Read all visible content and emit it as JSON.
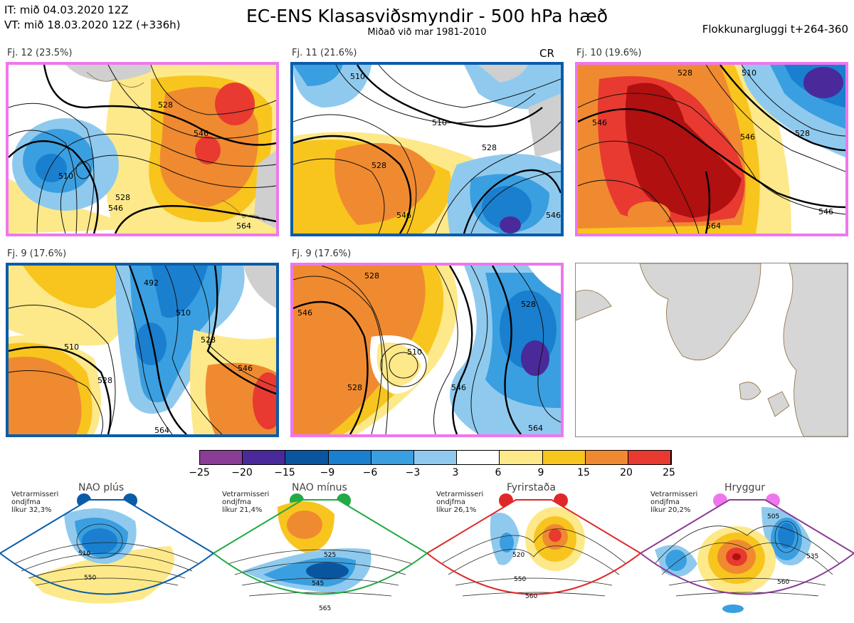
{
  "header": {
    "init_time": "IT: mið 04.03.2020 12Z",
    "valid_time": "VT: mið 18.03.2020 12Z  (+336h)",
    "title": "EC-ENS Klasasviðsmyndir - 500 hPa hæð",
    "subtitle": "Miðað við mar 1981-2010",
    "window": "Flokkunargluggi t+264-360"
  },
  "panels": [
    {
      "label": "Fj. 12 (23.5%)",
      "frame_color": "#ee77ee",
      "extra": "",
      "contours": [
        "510",
        "528",
        "546",
        "546",
        "528",
        "564"
      ]
    },
    {
      "label": "Fj. 11 (21.6%)",
      "frame_color": "#0a5ca8",
      "extra": "CR",
      "contours": [
        "528",
        "510",
        "528",
        "510",
        "546",
        "546"
      ]
    },
    {
      "label": "Fj. 10 (19.6%)",
      "frame_color": "#ee77ee",
      "extra": "",
      "contours": [
        "546",
        "528",
        "510",
        "546",
        "528",
        "564",
        "546"
      ]
    },
    {
      "label": "Fj. 9 (17.6%)",
      "frame_color": "#0a5ca8",
      "extra": "",
      "contours": [
        "492",
        "510",
        "528",
        "510",
        "528",
        "546",
        "564"
      ]
    },
    {
      "label": "Fj. 9 (17.6%)",
      "frame_color": "#ee77ee",
      "extra": "",
      "contours": [
        "528",
        "546",
        "510",
        "528",
        "546",
        "564",
        "528"
      ]
    }
  ],
  "colorbar": {
    "ticks": [
      "−25",
      "−20",
      "−15",
      "−9",
      "−6",
      "−3",
      "3",
      "6",
      "9",
      "15",
      "20",
      "25"
    ],
    "colors": [
      "#8a3d96",
      "#4a2a9a",
      "#0a55a0",
      "#1a7fcf",
      "#3a9fe0",
      "#8fcaee",
      "#ffffff",
      "#fde98a",
      "#f8c51e",
      "#f08a30",
      "#e83a30",
      "#b01010"
    ]
  },
  "regimes": [
    {
      "name": "NAO plús",
      "note": [
        "Vetrarmisseri",
        "ondjfma",
        "líkur 32,3%"
      ],
      "color": "#0a5ca8",
      "contours": [
        "510",
        "550"
      ]
    },
    {
      "name": "NAO mínus",
      "note": [
        "Vetrarmisseri",
        "ondjfma",
        "líkur 21,4%"
      ],
      "color": "#22aa44",
      "contours": [
        "525",
        "545",
        "565"
      ]
    },
    {
      "name": "Fyrirstaða",
      "note": [
        "Vetrarmisseri",
        "ondjfma",
        "líkur 26,1%"
      ],
      "color": "#e02828",
      "contours": [
        "520",
        "550",
        "560"
      ]
    },
    {
      "name": "Hryggur",
      "note": [
        "Vetrarmisseri",
        "ondjfma",
        "líkur 20,2%"
      ],
      "color": "#ee77ee",
      "contours": [
        "505",
        "535",
        "560"
      ]
    }
  ]
}
